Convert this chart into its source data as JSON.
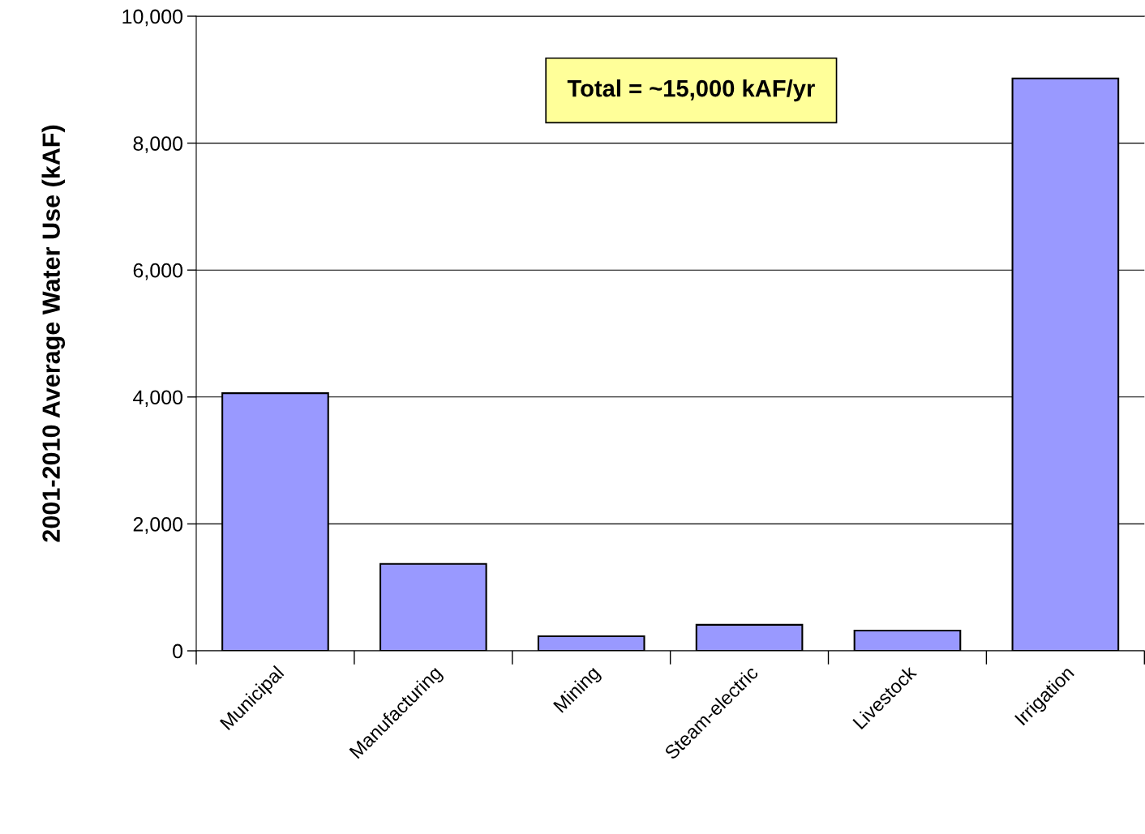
{
  "chart_data": {
    "type": "bar",
    "ylabel": "2001-2010 Average Water Use (kAF)",
    "categories": [
      "Municipal",
      "Manufacturing",
      "Mining",
      "Steam-electric",
      "Livestock",
      "Irrigation"
    ],
    "values": [
      4060,
      1370,
      230,
      410,
      320,
      9020
    ],
    "color": "#9999ff",
    "ylim": [
      0,
      10000
    ],
    "yticks": [
      {
        "value": 0,
        "label": "0"
      },
      {
        "value": 2000,
        "label": "2,000"
      },
      {
        "value": 4000,
        "label": "4,000"
      },
      {
        "value": 6000,
        "label": "6,000"
      },
      {
        "value": 8000,
        "label": "8,000"
      },
      {
        "value": 10000,
        "label": "10,000"
      }
    ],
    "grid": "y",
    "legend": false,
    "annotations": [
      "Total = ~15,000 kAF/yr"
    ]
  }
}
